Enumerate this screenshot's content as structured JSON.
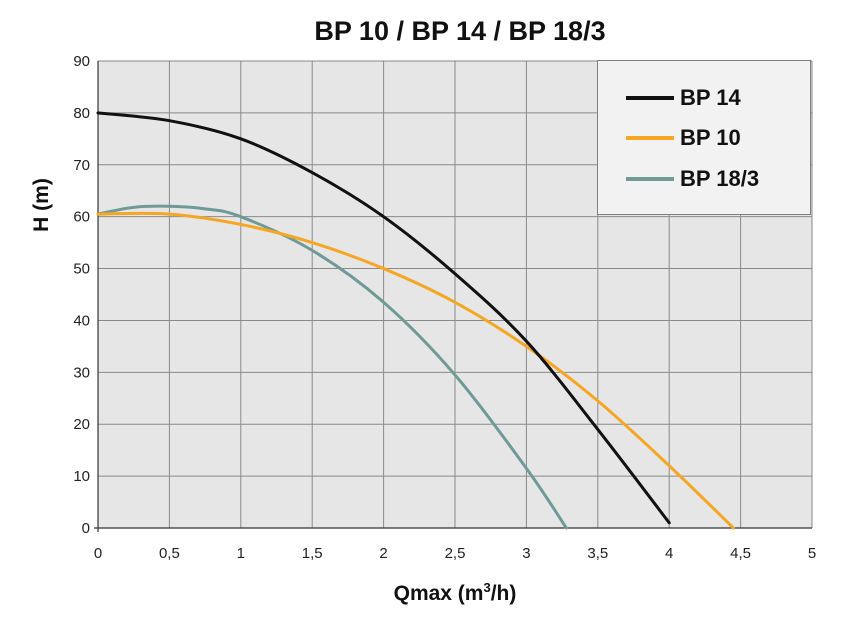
{
  "chart_data": {
    "type": "line",
    "title": "BP 10 / BP 14 / BP 18/3",
    "xlabel": "Qmax (m",
    "xlabel_sup": "3",
    "xlabel_suffix": "/h)",
    "ylabel": "H (m)",
    "xlim": [
      0,
      5
    ],
    "ylim": [
      0,
      90
    ],
    "xticks": [
      "0",
      "0,5",
      "1",
      "1,5",
      "2",
      "2,5",
      "3",
      "3,5",
      "4",
      "4,5",
      "5"
    ],
    "yticks": [
      "0",
      "10",
      "20",
      "30",
      "40",
      "50",
      "60",
      "70",
      "80",
      "90"
    ],
    "grid": true,
    "legend_position": "top-right",
    "series": [
      {
        "name": "BP 14",
        "color": "#111111",
        "x": [
          0,
          0.5,
          1,
          1.5,
          2,
          2.5,
          3,
          3.5,
          4
        ],
        "y": [
          80,
          78.5,
          75,
          68.5,
          60,
          49,
          36,
          19,
          1
        ]
      },
      {
        "name": "BP 10",
        "color": "#f5a623",
        "x": [
          0,
          0.5,
          1,
          1.5,
          2,
          2.5,
          3,
          3.5,
          4,
          4.45
        ],
        "y": [
          60.5,
          60.5,
          58.5,
          55,
          50,
          43.5,
          35,
          24.5,
          12,
          0
        ]
      },
      {
        "name": "BP 18/3",
        "color": "#6f9a98",
        "x": [
          0,
          0.25,
          0.5,
          0.75,
          1,
          1.5,
          2,
          2.5,
          3,
          3.28
        ],
        "y": [
          60.5,
          61.8,
          62,
          61.5,
          60,
          53.5,
          43.5,
          29.5,
          11.5,
          0
        ]
      }
    ]
  }
}
